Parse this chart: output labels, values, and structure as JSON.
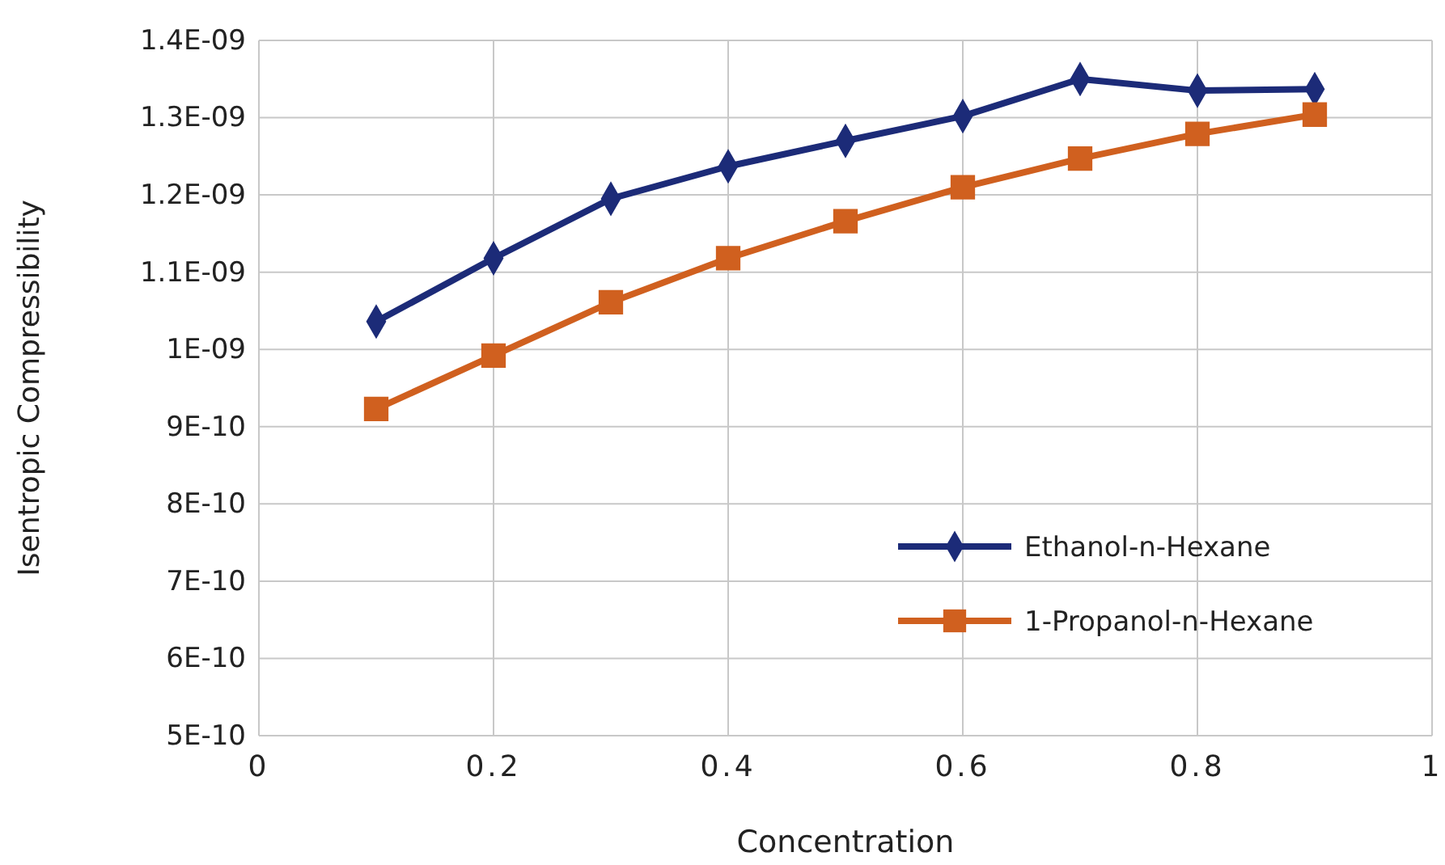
{
  "chart_data": {
    "type": "line",
    "xlabel": "Concentration",
    "ylabel": "Isentropic Compressibility",
    "x": [
      0.1,
      0.2,
      0.3,
      0.4,
      0.5,
      0.6,
      0.7,
      0.8,
      0.9
    ],
    "series": [
      {
        "name": "Ethanol-n-Hexane",
        "color": "#1c2b78",
        "marker": "diamond",
        "values": [
          1.036e-09,
          1.118e-09,
          1.195e-09,
          1.237e-09,
          1.27e-09,
          1.302e-09,
          1.35e-09,
          1.335e-09,
          1.337e-09
        ]
      },
      {
        "name": "1-Propanol-n-Hexane",
        "color": "#d0601f",
        "marker": "square",
        "values": [
          9.23e-10,
          9.92e-10,
          1.061e-09,
          1.118e-09,
          1.166e-09,
          1.21e-09,
          1.247e-09,
          1.279e-09,
          1.304e-09
        ]
      }
    ],
    "xlim": [
      0,
      1
    ],
    "xticks": [
      0,
      {
        "value": 0.2,
        "label": "0.2"
      },
      {
        "value": 0.4,
        "label": "0.4"
      },
      {
        "value": 0.6,
        "label": "0.6"
      },
      {
        "value": 0.8,
        "label": "0.8"
      },
      1
    ],
    "ylim": [
      5e-10,
      1.4e-09
    ],
    "yticks": [
      {
        "value": 5e-10,
        "label": "5E-10"
      },
      {
        "value": 6e-10,
        "label": "6E-10"
      },
      {
        "value": 7e-10,
        "label": "7E-10"
      },
      {
        "value": 8e-10,
        "label": "8E-10"
      },
      {
        "value": 9e-10,
        "label": "9E-10"
      },
      {
        "value": 1e-09,
        "label": "1E-09"
      },
      {
        "value": 1.1e-09,
        "label": "1.1E-09"
      },
      {
        "value": 1.2e-09,
        "label": "1.2E-09"
      },
      {
        "value": 1.3e-09,
        "label": "1.3E-09"
      },
      {
        "value": 1.4e-09,
        "label": "1.4E-09"
      }
    ],
    "grid": true,
    "legend": "bottom right",
    "line_style": "solid"
  }
}
